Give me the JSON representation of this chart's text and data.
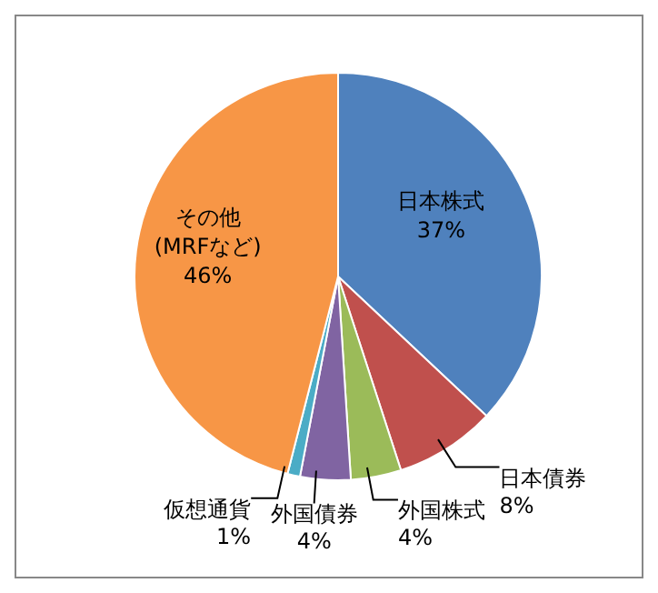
{
  "chart_data": {
    "type": "pie",
    "categories": [
      "日本株式",
      "日本債券",
      "外国株式",
      "外国債券",
      "仮想通貨",
      "その他\n(MRFなど)"
    ],
    "values": [
      37,
      8,
      4,
      4,
      1,
      46
    ],
    "value_labels": [
      "37%",
      "8%",
      "4%",
      "4%",
      "1%",
      "46%"
    ],
    "colors": [
      "#4f81bd",
      "#c0504d",
      "#9bbb59",
      "#8064a2",
      "#4bacc6",
      "#f79646"
    ],
    "legend": false
  }
}
